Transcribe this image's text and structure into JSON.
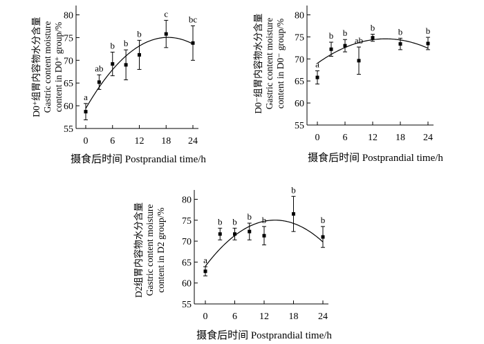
{
  "chart_data": [
    {
      "type": "scatter",
      "panel": "D0+",
      "ylabel_lines": [
        "D0⁺组胃内容物水分含量",
        "Gastric content moisture",
        "content in D0⁺ group/%"
      ],
      "xlabel": "摄食后时间  Postprandial time/h",
      "x_ticks": [
        0,
        6,
        12,
        18,
        24
      ],
      "y_ticks": [
        55,
        60,
        65,
        70,
        75,
        80
      ],
      "xlim": [
        -1,
        25
      ],
      "ylim": [
        55,
        82
      ],
      "series": [
        {
          "x": [
            0,
            3,
            6,
            9,
            12,
            18,
            24
          ],
          "y": [
            58.7,
            65.2,
            69.2,
            69.0,
            71.2,
            75.8,
            73.8
          ],
          "error": [
            1.8,
            1.6,
            2.6,
            3.3,
            3.2,
            3.0,
            3.8
          ],
          "letters": [
            "a",
            "ab",
            "b",
            "b",
            "b",
            "c",
            "bc"
          ]
        }
      ],
      "fit": {
        "type": "quadratic",
        "a": -0.0462,
        "b": 1.7,
        "c": 59.4,
        "x_range": [
          0,
          24
        ]
      }
    },
    {
      "type": "scatter",
      "panel": "D0-",
      "ylabel_lines": [
        "D0⁻组胃内容物水分含量",
        "Gastric content moisture",
        "content in D0⁻ group/%"
      ],
      "xlabel": "摄食后时间  Postprandial time/h",
      "x_ticks": [
        0,
        6,
        12,
        18,
        24
      ],
      "y_ticks": [
        55,
        60,
        65,
        70,
        75,
        80
      ],
      "xlim": [
        -1,
        25
      ],
      "ylim": [
        55,
        82
      ],
      "series": [
        {
          "x": [
            0,
            3,
            6,
            9,
            12,
            18,
            24
          ],
          "y": [
            65.8,
            72.2,
            73.0,
            69.6,
            74.8,
            73.4,
            73.5
          ],
          "error": [
            1.5,
            1.6,
            1.4,
            3.1,
            0.8,
            1.3,
            1.4
          ],
          "letters": [
            "a",
            "b",
            "b",
            "ab",
            "b",
            "b",
            "b"
          ]
        }
      ],
      "fit": {
        "type": "quadratic",
        "a": -0.0253,
        "b": 0.75,
        "c": 69.0,
        "x_range": [
          0,
          24
        ]
      }
    },
    {
      "type": "scatter",
      "panel": "D2",
      "ylabel_lines": [
        "D2组胃内容物水分含量",
        "Gastric content moisture",
        "content in D2 group/%"
      ],
      "xlabel": "摄食后时间  Postprandial time/h",
      "x_ticks": [
        0,
        6,
        12,
        18,
        24
      ],
      "y_ticks": [
        55,
        60,
        65,
        70,
        75,
        80
      ],
      "xlim": [
        -1,
        25
      ],
      "ylim": [
        55,
        82
      ],
      "series": [
        {
          "x": [
            0,
            3,
            6,
            9,
            12,
            18,
            24
          ],
          "y": [
            62.8,
            71.7,
            71.7,
            72.3,
            71.3,
            76.5,
            71.0
          ],
          "error": [
            1.1,
            1.4,
            1.4,
            2.0,
            2.2,
            4.2,
            2.5
          ],
          "letters": [
            "a",
            "b",
            "b",
            "b",
            "b",
            "b",
            "b"
          ]
        }
      ],
      "fit": {
        "type": "quadratic",
        "a": -0.0545,
        "b": 1.55,
        "c": 64.0,
        "x_range": [
          0,
          24
        ]
      }
    }
  ]
}
